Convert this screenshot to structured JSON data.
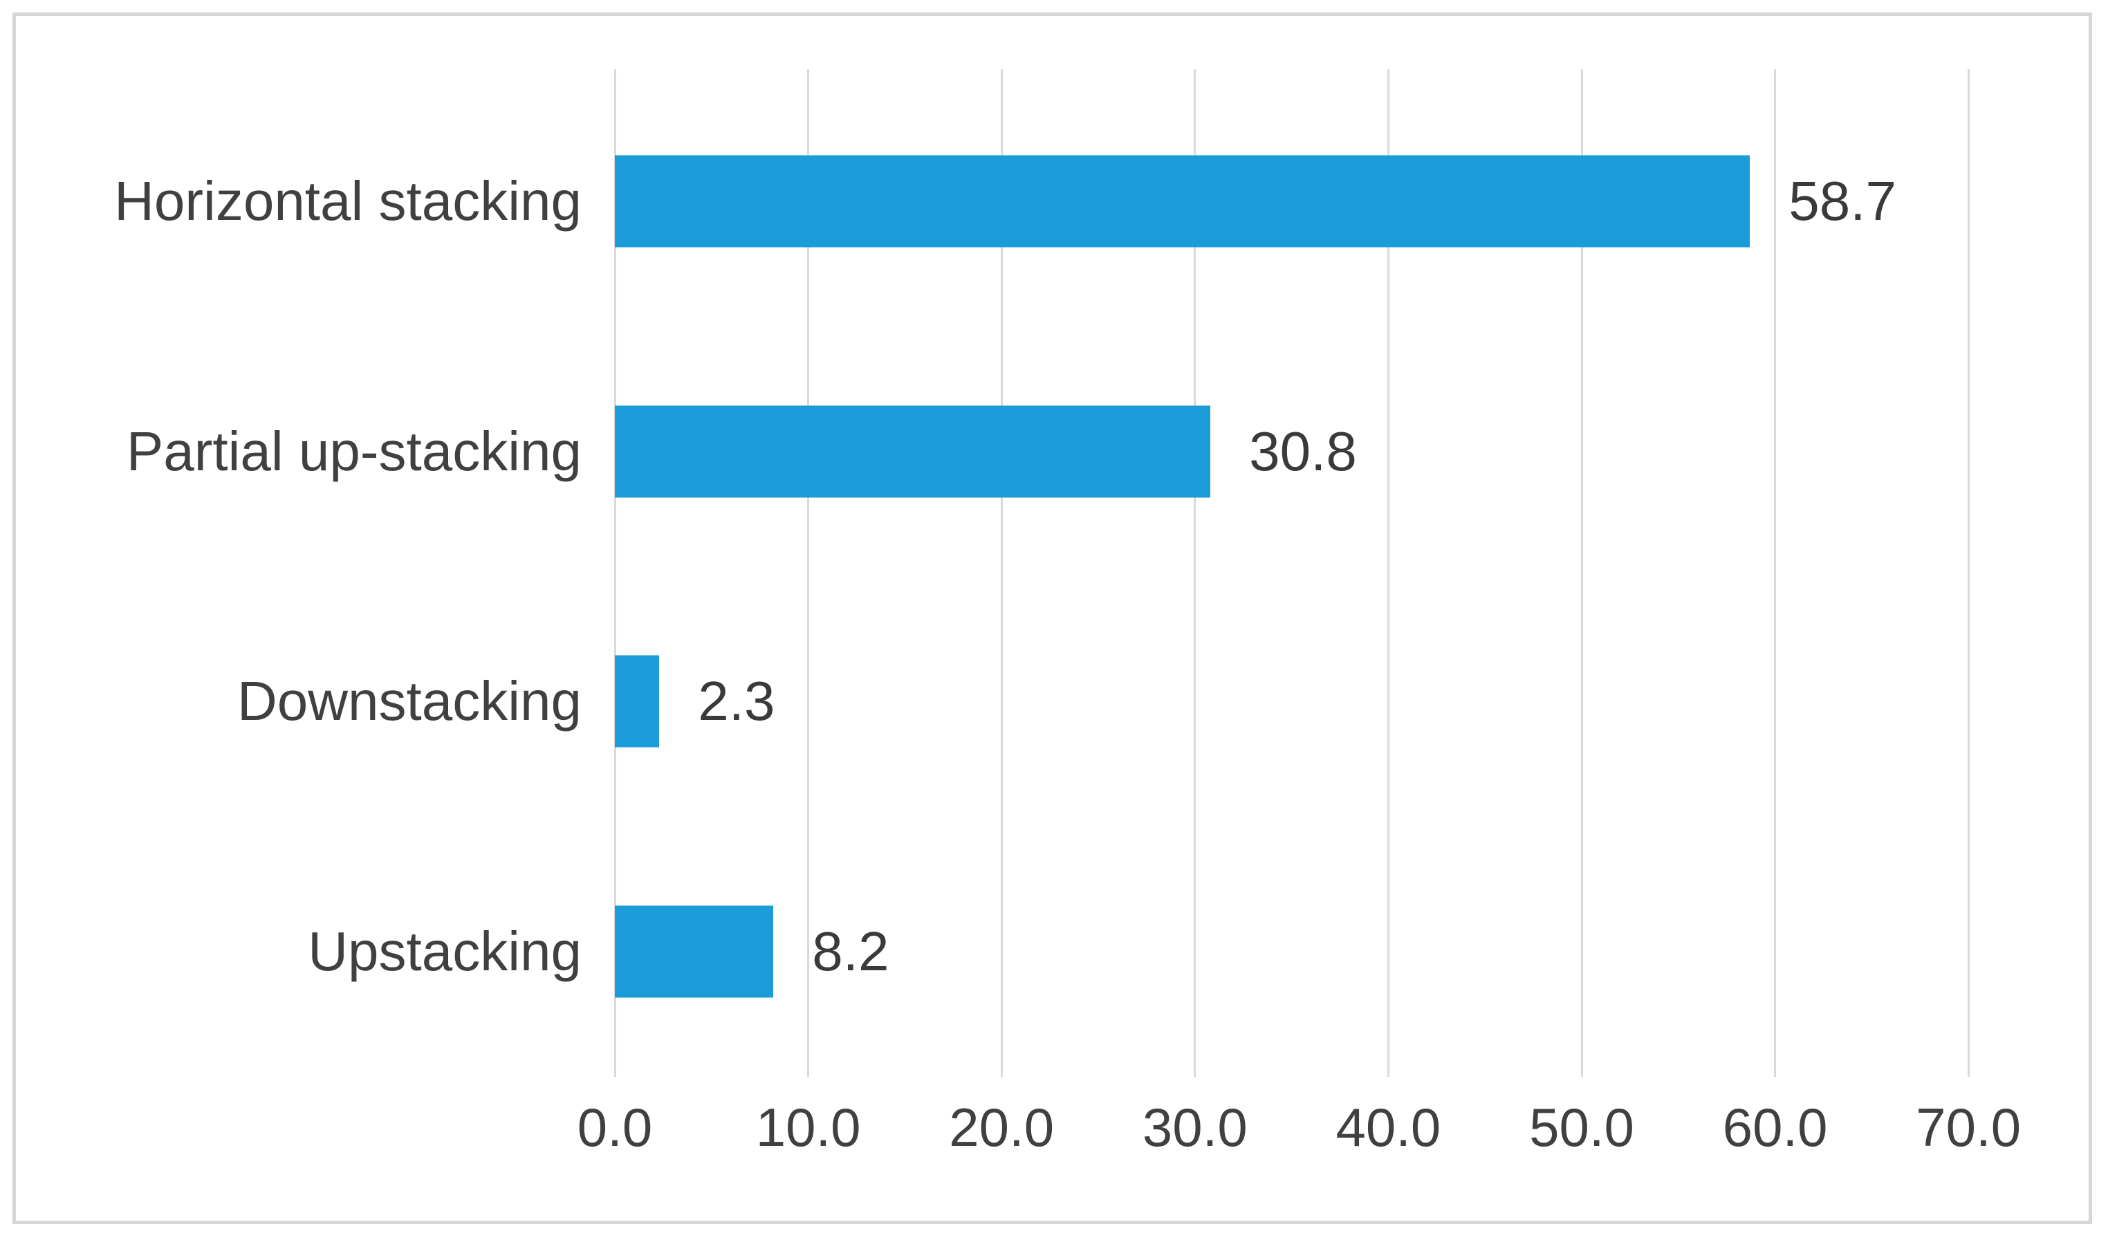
{
  "figure": {
    "background": "#ffffff",
    "frame_border_color": "#d6d6d6"
  },
  "chart_data": {
    "type": "bar",
    "orientation": "horizontal",
    "title": "",
    "xlabel": "",
    "ylabel": "",
    "categories": [
      "Horizontal stacking",
      "Partial up-stacking",
      "Downstacking",
      "Upstacking"
    ],
    "values": [
      58.7,
      30.8,
      2.3,
      8.2
    ],
    "value_labels": [
      "58.7",
      "30.8",
      "2.3",
      "8.2"
    ],
    "x_tick_values": [
      0,
      10,
      20,
      30,
      40,
      50,
      60,
      70
    ],
    "x_tick_labels": [
      "0.0",
      "10.0",
      "20.0",
      "30.0",
      "40.0",
      "50.0",
      "60.0",
      "70.0"
    ],
    "xlim": [
      0,
      70
    ],
    "grid": true,
    "legend": false,
    "bar_color": "#1b9cd8",
    "gridline_color": "#d9d9d9",
    "text_color": "#404040"
  }
}
